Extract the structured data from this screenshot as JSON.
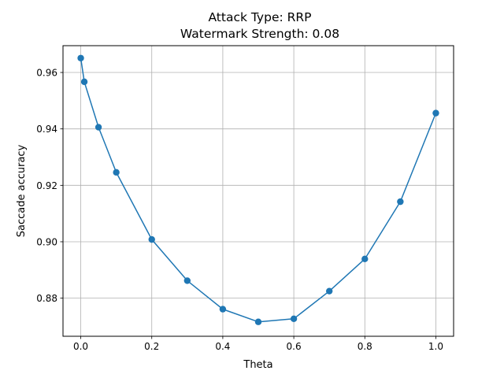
{
  "chart_data": {
    "type": "line",
    "title_line1": "Attack Type: RRP",
    "title_line2": "Watermark Strength: 0.08",
    "xlabel": "Theta",
    "ylabel": "Saccade accuracy",
    "xlim": [
      -0.05,
      1.05
    ],
    "ylim": [
      0.8665,
      0.9695
    ],
    "xticks": [
      0.0,
      0.2,
      0.4,
      0.6,
      0.8,
      1.0
    ],
    "xtick_labels": [
      "0.0",
      "0.2",
      "0.4",
      "0.6",
      "0.8",
      "1.0"
    ],
    "yticks": [
      0.88,
      0.9,
      0.92,
      0.94,
      0.96
    ],
    "ytick_labels": [
      "0.88",
      "0.90",
      "0.92",
      "0.94",
      "0.96"
    ],
    "grid": true,
    "series": [
      {
        "color": "#1f77b4",
        "marker": "circle",
        "x": [
          0.0,
          0.01,
          0.05,
          0.1,
          0.2,
          0.3,
          0.4,
          0.5,
          0.6,
          0.7,
          0.8,
          0.9,
          1.0
        ],
        "y": [
          0.9651,
          0.9567,
          0.9406,
          0.9246,
          0.9008,
          0.8862,
          0.8761,
          0.8716,
          0.8727,
          0.8825,
          0.8939,
          0.9142,
          0.9456
        ]
      }
    ]
  }
}
